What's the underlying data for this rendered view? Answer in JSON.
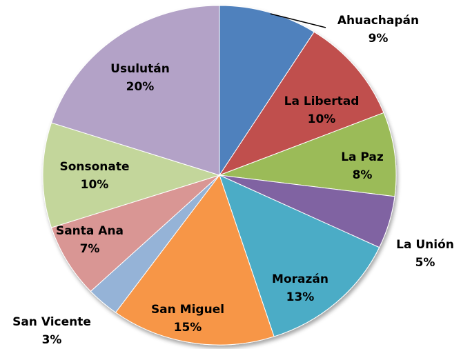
{
  "chart_data": {
    "type": "pie",
    "categories": [
      "Ahuachapán",
      "La Libertad",
      "La Paz",
      "La Unión",
      "Morazán",
      "San Miguel",
      "San Vicente",
      "Santa Ana",
      "Sonsonate",
      "Usulután"
    ],
    "values": [
      9,
      10,
      8,
      5,
      13,
      15,
      3,
      7,
      10,
      20
    ],
    "value_labels": [
      "9%",
      "10%",
      "8%",
      "5%",
      "13%",
      "15%",
      "3%",
      "7%",
      "10%",
      "20%"
    ],
    "colors": [
      "#4f81bd",
      "#c0504d",
      "#9bbb59",
      "#8064a2",
      "#4bacc6",
      "#f79646",
      "#95b3d7",
      "#d99694",
      "#c3d69b",
      "#b3a2c7"
    ]
  }
}
